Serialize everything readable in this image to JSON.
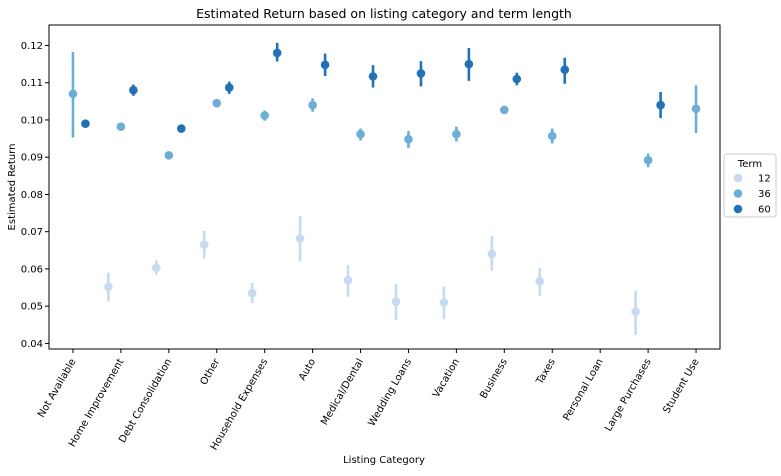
{
  "chart_data": {
    "type": "pointplot",
    "title": "Estimated Return based on listing category and term length",
    "xlabel": "Listing Category",
    "ylabel": "Estimated Return",
    "ylim": [
      0.0385,
      0.1255
    ],
    "yticks": [
      0.04,
      0.05,
      0.06,
      0.07,
      0.08,
      0.09,
      0.1,
      0.11,
      0.12
    ],
    "ytick_labels": [
      "0.04",
      "0.05",
      "0.06",
      "0.07",
      "0.08",
      "0.09",
      "0.10",
      "0.11",
      "0.12"
    ],
    "grid": false,
    "categories": [
      "Not Available",
      "Home Improvement",
      "Debt Consolidation",
      "Other",
      "Household Expenses",
      "Auto",
      "Medical/Dental",
      "Wedding Loans",
      "Vacation",
      "Business",
      "Taxes",
      "Personal Loan",
      "Large Purchases",
      "Student Use"
    ],
    "legend": {
      "title": "Term",
      "placement": "center-right outside",
      "entries": [
        "12",
        "36",
        "60"
      ]
    },
    "series": [
      {
        "name": "12",
        "color": "#c6dbef",
        "values": [
          null,
          0.0552,
          0.0603,
          0.0665,
          0.0535,
          0.0682,
          0.057,
          0.0512,
          0.051,
          0.064,
          0.0567,
          null,
          0.0485,
          null
        ],
        "ci_low": [
          null,
          0.0512,
          0.0585,
          0.0628,
          0.0508,
          0.062,
          0.0525,
          0.0463,
          0.0465,
          0.0595,
          0.0528,
          null,
          0.0423,
          null
        ],
        "ci_high": [
          null,
          0.059,
          0.0623,
          0.0702,
          0.0563,
          0.0742,
          0.061,
          0.056,
          0.0553,
          0.0688,
          0.0602,
          null,
          0.0542,
          null
        ]
      },
      {
        "name": "36",
        "color": "#6baed6",
        "values": [
          0.107,
          0.0982,
          0.0905,
          0.1045,
          0.1012,
          0.104,
          0.0962,
          0.0948,
          0.0962,
          0.1027,
          0.0957,
          null,
          0.0892,
          0.103
        ],
        "ci_low": [
          0.0953,
          0.0975,
          0.0902,
          0.1042,
          0.0998,
          0.1022,
          0.0945,
          0.0925,
          0.0942,
          0.1017,
          0.0937,
          null,
          0.0873,
          0.0965
        ],
        "ci_high": [
          0.1183,
          0.099,
          0.0909,
          0.1048,
          0.1025,
          0.1058,
          0.0977,
          0.097,
          0.0982,
          0.1037,
          0.0977,
          null,
          0.091,
          0.1093
        ]
      },
      {
        "name": "60",
        "color": "#2171b5",
        "values": [
          0.099,
          0.108,
          0.0977,
          0.1087,
          0.118,
          0.1148,
          0.1117,
          0.1125,
          0.115,
          0.111,
          0.1135,
          null,
          0.104,
          null
        ],
        "ci_low": [
          0.0988,
          0.1065,
          0.0975,
          0.107,
          0.1157,
          0.1118,
          0.1087,
          0.109,
          0.1105,
          0.1093,
          0.1097,
          null,
          0.1005,
          null
        ],
        "ci_high": [
          0.0992,
          0.1095,
          0.098,
          0.1103,
          0.1207,
          0.1178,
          0.1147,
          0.1158,
          0.1193,
          0.1127,
          0.1167,
          null,
          0.1075,
          null
        ]
      }
    ]
  }
}
